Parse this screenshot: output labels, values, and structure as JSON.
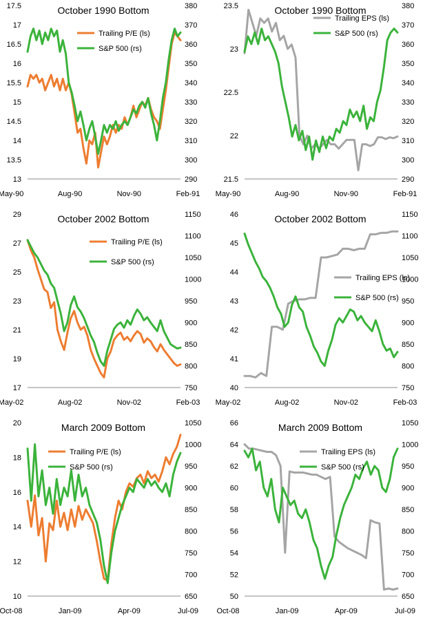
{
  "colors": {
    "pe": "#ED7D31",
    "eps": "#A5A5A5",
    "sp": "#3BB33B",
    "axis": "#000000"
  },
  "chart_data": [
    {
      "type": "line",
      "title": "October 1990 Bottom",
      "xticks": [
        "May-90",
        "Aug-90",
        "Nov-90",
        "Feb-91"
      ],
      "left_ticks": [
        "17.5",
        "17",
        "16.5",
        "16",
        "15.5",
        "15",
        "14.5",
        "14",
        "13.5",
        "13"
      ],
      "left_range": [
        13,
        17.5
      ],
      "right_ticks": [
        "380",
        "370",
        "360",
        "350",
        "340",
        "330",
        "320",
        "310",
        "300",
        "290"
      ],
      "right_range": [
        290,
        380
      ],
      "legend": [
        "Trailing P/E (ls)",
        "S&P 500 (rs)"
      ],
      "series": [
        {
          "name": "Trailing P/E (ls)",
          "axis": "left",
          "color": "pe",
          "values": [
            15.4,
            15.7,
            15.6,
            15.7,
            15.5,
            15.6,
            15.3,
            15.5,
            15.7,
            15.4,
            15.6,
            15.3,
            15.6,
            15.3,
            15.5,
            15.2,
            14.7,
            14.2,
            14.3,
            13.8,
            13.4,
            14.0,
            13.9,
            14.2,
            13.3,
            13.7,
            14.1,
            13.9,
            14.1,
            14.4,
            14.2,
            14.4,
            14.3,
            14.6,
            14.4,
            14.6,
            14.9,
            14.6,
            14.8,
            15.0,
            14.9,
            15.1,
            14.8,
            14.6,
            14.5,
            14.3,
            14.8,
            15.3,
            15.9,
            16.5,
            16.8,
            16.7,
            16.6
          ]
        },
        {
          "name": "S&P 500 (rs)",
          "axis": "right",
          "color": "sp",
          "values": [
            356,
            364,
            368,
            362,
            367,
            360,
            366,
            362,
            368,
            364,
            367,
            356,
            362,
            355,
            340,
            335,
            328,
            320,
            325,
            318,
            310,
            316,
            320,
            312,
            303,
            310,
            318,
            314,
            318,
            316,
            320,
            315,
            318,
            320,
            318,
            322,
            326,
            324,
            328,
            330,
            327,
            332,
            324,
            318,
            310,
            320,
            332,
            340,
            352,
            362,
            368,
            364,
            366
          ]
        }
      ]
    },
    {
      "type": "line",
      "title": "October 1990 Bottom",
      "xticks": [
        "May-90",
        "Aug-90",
        "Nov-90",
        "Feb-91"
      ],
      "left_ticks": [
        "23.5",
        "23",
        "22.5",
        "22",
        "21.5"
      ],
      "left_range": [
        21.5,
        23.5
      ],
      "right_ticks": [
        "380",
        "370",
        "360",
        "350",
        "340",
        "330",
        "320",
        "310",
        "300",
        "290"
      ],
      "right_range": [
        290,
        380
      ],
      "legend": [
        "Trailing EPS (ls)",
        "S&P 500 (rs)"
      ],
      "series": [
        {
          "name": "Trailing EPS (ls)",
          "axis": "left",
          "color": "eps",
          "values": [
            22.95,
            23.45,
            23.3,
            23.15,
            23.35,
            23.3,
            23.35,
            23.2,
            23.3,
            23.1,
            23.15,
            23.0,
            23.05,
            22.9,
            22.0,
            21.9,
            22.0,
            21.85,
            21.9,
            21.85,
            21.9,
            21.95,
            21.9,
            21.9,
            21.85,
            21.9,
            21.95,
            21.95,
            21.95,
            21.6,
            21.9,
            21.9,
            21.88,
            21.9,
            21.98,
            21.98,
            21.96,
            21.98,
            21.97,
            21.99
          ]
        },
        {
          "name": "S&P 500 (rs)",
          "axis": "right",
          "color": "sp",
          "values": [
            356,
            364,
            360,
            366,
            360,
            368,
            362,
            364,
            360,
            356,
            350,
            338,
            330,
            322,
            312,
            318,
            310,
            315,
            305,
            312,
            300,
            310,
            304,
            312,
            306,
            312,
            310,
            316,
            314,
            320,
            318,
            326,
            322,
            325,
            320,
            328,
            316,
            322,
            320,
            330,
            336,
            348,
            362,
            366,
            368,
            366
          ]
        }
      ]
    },
    {
      "type": "line",
      "title": "October 2002 Bottom",
      "xticks": [
        "May-02",
        "Aug-02",
        "Nov-02",
        "Feb-03"
      ],
      "left_ticks": [
        "29",
        "27",
        "25",
        "23",
        "21",
        "19",
        "17"
      ],
      "left_range": [
        17,
        29
      ],
      "right_ticks": [
        "1150",
        "1100",
        "1050",
        "1000",
        "950",
        "900",
        "850",
        "800",
        "750"
      ],
      "right_range": [
        750,
        1150
      ],
      "legend": [
        "Trailing P/E (ls)",
        "S&P 500 (rs)"
      ],
      "series": [
        {
          "name": "Trailing P/E (ls)",
          "axis": "left",
          "color": "pe",
          "values": [
            27.2,
            26.5,
            26.0,
            25.2,
            24.5,
            23.8,
            23.6,
            22.5,
            22.9,
            21.0,
            20.2,
            19.6,
            20.8,
            21.8,
            22.3,
            21.5,
            21.0,
            21.2,
            20.6,
            19.6,
            19.0,
            18.5,
            18.0,
            17.7,
            19.0,
            19.5,
            20.3,
            20.6,
            20.8,
            20.3,
            20.5,
            20.2,
            20.6,
            20.9,
            20.7,
            20.1,
            20.4,
            20.2,
            19.8,
            19.5,
            20.0,
            19.6,
            19.3,
            19.0,
            18.7,
            18.5,
            18.6
          ]
        },
        {
          "name": "S&P 500 (rs)",
          "axis": "right",
          "color": "sp",
          "values": [
            1090,
            1075,
            1060,
            1050,
            1035,
            1020,
            1010,
            990,
            980,
            950,
            920,
            880,
            900,
            940,
            960,
            935,
            925,
            910,
            890,
            870,
            855,
            830,
            810,
            800,
            835,
            860,
            885,
            895,
            900,
            888,
            905,
            895,
            915,
            930,
            920,
            905,
            912,
            900,
            890,
            880,
            905,
            880,
            865,
            850,
            845,
            840,
            842
          ]
        }
      ]
    },
    {
      "type": "line",
      "title": "October 2002 Bottom",
      "xticks": [
        "May-02",
        "Aug-02",
        "Nov-02",
        "Feb-03"
      ],
      "left_ticks": [
        "46",
        "45",
        "44",
        "43",
        "42",
        "41",
        "40"
      ],
      "left_range": [
        40,
        46
      ],
      "right_ticks": [
        "1150",
        "1100",
        "1050",
        "1000",
        "950",
        "900",
        "850",
        "800",
        "750"
      ],
      "right_range": [
        750,
        1150
      ],
      "legend": [
        "Trailing EPS (ls)",
        "S&P 500 (rs)"
      ],
      "series": [
        {
          "name": "Trailing EPS (ls)",
          "axis": "left",
          "color": "eps",
          "values": [
            40.4,
            40.4,
            40.35,
            40.5,
            40.4,
            42.1,
            42.1,
            42.0,
            42.9,
            43.0,
            43.05,
            43.05,
            43.1,
            43.1,
            44.5,
            44.5,
            44.55,
            44.6,
            44.8,
            44.8,
            44.75,
            44.8,
            44.8,
            45.3,
            45.3,
            45.35,
            45.35,
            45.4,
            45.4
          ]
        },
        {
          "name": "S&P 500 (rs)",
          "axis": "right",
          "color": "sp",
          "values": [
            1105,
            1080,
            1060,
            1040,
            1025,
            1005,
            995,
            980,
            960,
            935,
            920,
            890,
            900,
            940,
            960,
            935,
            925,
            890,
            870,
            845,
            830,
            810,
            800,
            835,
            860,
            895,
            910,
            900,
            915,
            930,
            925,
            905,
            915,
            900,
            890,
            880,
            905,
            880,
            850,
            835,
            840,
            820,
            832
          ]
        }
      ]
    },
    {
      "type": "line",
      "title": "March 2009 Bottom",
      "xticks": [
        "Oct-08",
        "Jan-09",
        "Apr-09",
        "Jul-09"
      ],
      "left_ticks": [
        "20",
        "18",
        "16",
        "14",
        "12",
        "10"
      ],
      "left_range": [
        10,
        20
      ],
      "right_ticks": [
        "1050",
        "1000",
        "950",
        "900",
        "850",
        "800",
        "750",
        "700",
        "650"
      ],
      "right_range": [
        650,
        1050
      ],
      "legend": [
        "Trailing P/E (ls)",
        "S&P 500 (rs)"
      ],
      "series": [
        {
          "name": "Trailing P/E (ls)",
          "axis": "left",
          "color": "pe",
          "values": [
            15.5,
            14.0,
            15.8,
            13.5,
            14.5,
            12.0,
            14.2,
            13.8,
            15.5,
            14.0,
            14.8,
            13.8,
            15.0,
            14.0,
            15.2,
            14.4,
            15.0,
            14.6,
            14.2,
            13.2,
            12.0,
            11.0,
            10.9,
            13.0,
            14.5,
            15.5,
            15.0,
            16.0,
            16.5,
            16.3,
            16.8,
            17.0,
            16.5,
            17.2,
            16.8,
            17.0,
            16.6,
            17.2,
            18.0,
            17.6,
            18.2,
            18.6,
            19.3
          ]
        },
        {
          "name": "S&P 500 (rs)",
          "axis": "right",
          "color": "sp",
          "values": [
            990,
            870,
            1000,
            880,
            940,
            860,
            900,
            840,
            920,
            860,
            900,
            880,
            940,
            870,
            930,
            880,
            900,
            860,
            840,
            820,
            780,
            720,
            680,
            750,
            800,
            830,
            860,
            880,
            900,
            890,
            920,
            910,
            900,
            920,
            905,
            915,
            900,
            890,
            910,
            880,
            930,
            960,
            980
          ]
        }
      ]
    },
    {
      "type": "line",
      "title": "March 2009 Bottom",
      "xticks": [
        "Oct-08",
        "Jan-09",
        "Apr-09",
        "Jul-09"
      ],
      "left_ticks": [
        "66",
        "64",
        "62",
        "60",
        "58",
        "56",
        "54",
        "52",
        "50"
      ],
      "left_range": [
        50,
        66
      ],
      "right_ticks": [
        "1050",
        "1000",
        "950",
        "900",
        "850",
        "800",
        "750",
        "700",
        "650"
      ],
      "right_range": [
        650,
        1050
      ],
      "legend": [
        "Trailing EPS (ls)",
        "S&P 500 (rs)"
      ],
      "series": [
        {
          "name": "Trailing EPS (ls)",
          "axis": "left",
          "color": "eps",
          "values": [
            64.0,
            63.6,
            63.6,
            63.5,
            63.4,
            63.3,
            63.3,
            63.0,
            62.0,
            54.0,
            61.5,
            61.4,
            61.4,
            61.4,
            61.3,
            61.2,
            61.2,
            61.0,
            60.8,
            61.0,
            55.5,
            55.0,
            54.7,
            54.4,
            54.2,
            54.0,
            53.8,
            53.5,
            57.0,
            56.8,
            56.7,
            50.6,
            50.7,
            50.6,
            50.7
          ]
        },
        {
          "name": "S&P 500 (rs)",
          "axis": "right",
          "color": "sp",
          "values": [
            985,
            970,
            990,
            940,
            960,
            900,
            880,
            920,
            850,
            820,
            900,
            880,
            860,
            870,
            840,
            830,
            850,
            820,
            780,
            760,
            720,
            690,
            720,
            740,
            790,
            830,
            860,
            880,
            900,
            930,
            920,
            945,
            960,
            930,
            950,
            940,
            900,
            890,
            920,
            970,
            990
          ]
        }
      ]
    }
  ]
}
